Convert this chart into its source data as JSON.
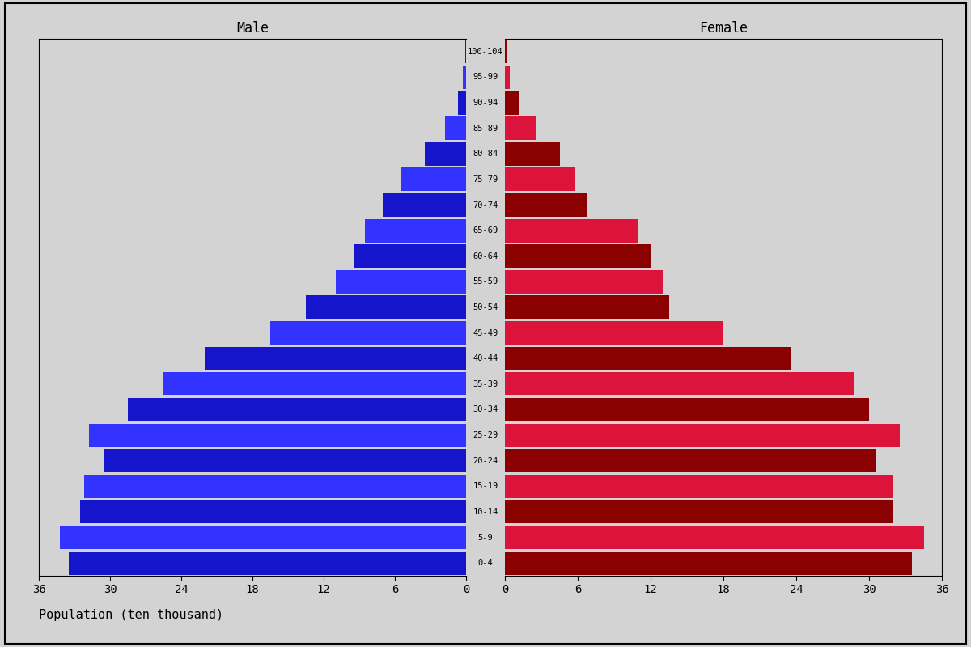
{
  "age_groups": [
    "0-4",
    "5-9",
    "10-14",
    "15-19",
    "20-24",
    "25-29",
    "30-34",
    "35-39",
    "40-44",
    "45-49",
    "50-54",
    "55-59",
    "60-64",
    "65-69",
    "70-74",
    "75-79",
    "80-84",
    "85-89",
    "90-94",
    "95-99",
    "100-104"
  ],
  "male": [
    33.5,
    34.2,
    32.5,
    32.2,
    30.5,
    31.8,
    28.5,
    25.5,
    22.0,
    16.5,
    13.5,
    11.0,
    9.5,
    8.5,
    7.0,
    5.5,
    3.5,
    1.8,
    0.7,
    0.25,
    0.08
  ],
  "female": [
    33.5,
    34.5,
    32.0,
    32.0,
    30.5,
    32.5,
    30.0,
    28.8,
    23.5,
    18.0,
    13.5,
    13.0,
    12.0,
    11.0,
    6.8,
    5.8,
    4.5,
    2.5,
    1.2,
    0.4,
    0.1
  ],
  "male_colors": [
    "#1515CC",
    "#3333FF",
    "#1515CC",
    "#3333FF",
    "#1515CC",
    "#3333FF",
    "#1515CC",
    "#3333FF",
    "#1515CC",
    "#3333FF",
    "#1515CC",
    "#3333FF",
    "#1515CC",
    "#3333FF",
    "#1515CC",
    "#3333FF",
    "#1515CC",
    "#3333FF",
    "#1515CC",
    "#3333FF",
    "#1515CC"
  ],
  "female_colors": [
    "#8B0000",
    "#DC143C",
    "#8B0000",
    "#DC143C",
    "#8B0000",
    "#DC143C",
    "#8B0000",
    "#DC143C",
    "#8B0000",
    "#DC143C",
    "#8B0000",
    "#DC143C",
    "#8B0000",
    "#DC143C",
    "#8B0000",
    "#DC143C",
    "#8B0000",
    "#DC143C",
    "#8B0000",
    "#DC143C",
    "#8B0000"
  ],
  "xlim": 36,
  "xlabel": "Population (ten thousand)",
  "male_label": "Male",
  "female_label": "Female",
  "bg_color": "#d3d3d3",
  "tick_positions": [
    0,
    6,
    12,
    18,
    24,
    30,
    36
  ]
}
